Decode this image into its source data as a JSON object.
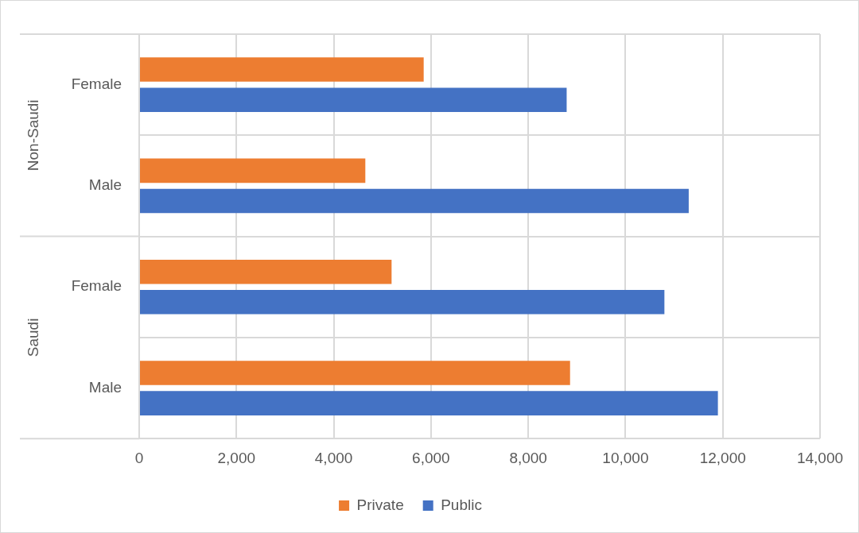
{
  "chart_data": {
    "type": "bar",
    "orientation": "horizontal",
    "categories": [
      "Female",
      "Male",
      "Female",
      "Male"
    ],
    "series": [
      {
        "name": "Private",
        "color": "#ed7d31",
        "values": [
          5850,
          4650,
          5190,
          8860
        ]
      },
      {
        "name": "Public",
        "color": "#4472c4",
        "values": [
          8790,
          11300,
          10800,
          11900
        ]
      }
    ],
    "annotations": [
      "Non-Saudi",
      "Saudi"
    ],
    "xlim": [
      0,
      14000
    ],
    "xticks": [
      {
        "value": 0,
        "label": "0"
      },
      {
        "value": 2000,
        "label": "2,000"
      },
      {
        "value": 4000,
        "label": "4,000"
      },
      {
        "value": 6000,
        "label": "6,000"
      },
      {
        "value": 8000,
        "label": "8,000"
      },
      {
        "value": 10000,
        "label": "10,000"
      },
      {
        "value": 12000,
        "label": "12,000"
      },
      {
        "value": 14000,
        "label": "14,000"
      }
    ],
    "grid": true,
    "legend": "bottom"
  }
}
